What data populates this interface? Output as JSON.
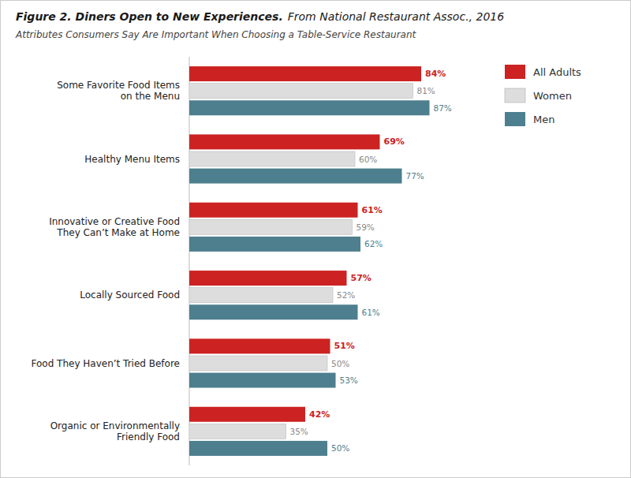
{
  "chart_data": {
    "type": "bar",
    "orientation": "horizontal",
    "title": "Figure 2. Diners Open to New Experiences.",
    "source": "From National Restaurant Assoc., 2016",
    "subtitle": "Attributes Consumers Say Are Important When Choosing a Table-Service Restaurant",
    "categories": [
      "Some Favorite Food Items\non the Menu",
      "Healthy Menu Items",
      "Innovative or Creative Food\nThey Can’t Make at Home",
      "Locally Sourced Food",
      "Food They Haven’t Tried Before",
      "Organic or Environmentally\nFriendly Food"
    ],
    "series": [
      {
        "name": "All Adults",
        "color": "#cc2222",
        "values": [
          84,
          69,
          61,
          57,
          51,
          42
        ],
        "value_labels": [
          "84%",
          "69%",
          "61%",
          "57%",
          "51%",
          "42%"
        ]
      },
      {
        "name": "Women",
        "color": "#dddddd",
        "values": [
          81,
          60,
          59,
          52,
          50,
          35
        ],
        "value_labels": [
          "81%",
          "60%",
          "59%",
          "52%",
          "50%",
          "35%"
        ]
      },
      {
        "name": "Men",
        "color": "#4d7f8e",
        "values": [
          87,
          77,
          62,
          61,
          53,
          50
        ],
        "value_labels": [
          "87%",
          "77%",
          "62%",
          "61%",
          "53%",
          "50%"
        ]
      }
    ],
    "xlim": [
      0,
      100
    ],
    "data_labels": true,
    "tick_labels": "y",
    "grid": false,
    "legend": "right"
  }
}
